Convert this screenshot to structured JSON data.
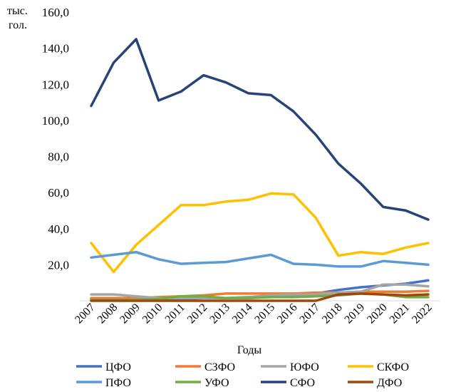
{
  "chart_data": {
    "type": "line",
    "ylabel": "тыс. гол.",
    "xlabel": "Годы",
    "ylim": [
      0,
      160
    ],
    "yticks": [
      "20,0",
      "40,0",
      "60,0",
      "80,0",
      "100,0",
      "120,0",
      "140,0",
      "160,0"
    ],
    "x": [
      "2007",
      "2008",
      "2009",
      "2010",
      "2011",
      "2012",
      "2013",
      "2014",
      "2015",
      "2016",
      "2017",
      "2018",
      "2019",
      "2020",
      "2021",
      "2022"
    ],
    "grid": false,
    "legend": "bottom",
    "series": [
      {
        "name": "ЦФО",
        "color": "#4472C4",
        "values": [
          1,
          1,
          0.7,
          0.7,
          1,
          1.5,
          1.5,
          2,
          2.5,
          3,
          4,
          6,
          7.5,
          8.5,
          9.5,
          11.3
        ]
      },
      {
        "name": "СЗФО",
        "color": "#ED7D31",
        "values": [
          1.5,
          1.5,
          1.5,
          2,
          2.5,
          3,
          4,
          4,
          4,
          4,
          4.5,
          4.5,
          5,
          5,
          5,
          5.5
        ]
      },
      {
        "name": "ЮФО",
        "color": "#A5A5A5",
        "values": [
          3.5,
          3.5,
          2.5,
          1.5,
          1.5,
          1.5,
          1.5,
          2,
          3,
          3.5,
          3.5,
          4.5,
          5,
          9,
          9,
          8
        ]
      },
      {
        "name": "СКФО",
        "color": "#FFC000",
        "values": [
          32,
          16,
          31,
          42,
          53,
          53,
          55,
          56,
          59.5,
          59,
          46,
          25,
          27,
          26,
          29.5,
          32
        ]
      },
      {
        "name": "ПФО",
        "color": "#5B9BD5",
        "values": [
          24,
          25.5,
          27,
          23,
          20.5,
          21,
          21.5,
          23.5,
          25.5,
          20.5,
          20,
          19,
          19,
          22,
          21,
          20
        ]
      },
      {
        "name": "УФО",
        "color": "#70AD47",
        "values": [
          0.5,
          0.5,
          0.5,
          1,
          2.5,
          2.5,
          1.5,
          1.5,
          2,
          2,
          2.5,
          3,
          4,
          3.5,
          2,
          2
        ]
      },
      {
        "name": "СФО",
        "color": "#264478",
        "values": [
          108,
          132,
          145,
          111,
          116,
          125,
          121,
          115,
          114,
          105,
          92,
          76,
          65,
          52,
          50,
          45
        ]
      },
      {
        "name": "ДФО",
        "color": "#9E480E",
        "values": [
          0,
          0,
          0,
          0,
          0,
          0,
          0,
          0,
          0,
          0,
          0,
          3.5,
          4,
          3.5,
          3,
          3.5
        ]
      }
    ]
  }
}
